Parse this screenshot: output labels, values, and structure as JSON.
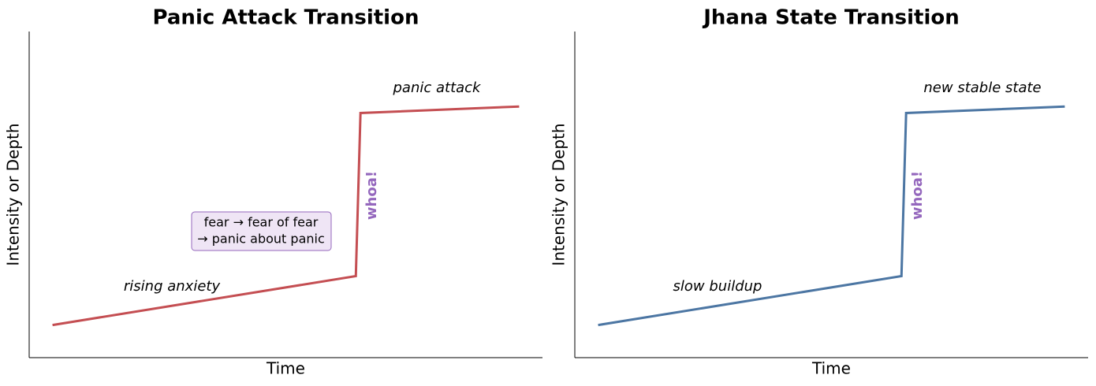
{
  "chart_data": [
    {
      "type": "line",
      "title": "Panic Attack Transition",
      "x_label": "Time",
      "y_label": "Intensity or Depth",
      "x": [
        0,
        6.5,
        6.6,
        10
      ],
      "xlim": [
        -0.5,
        10.5
      ],
      "ylim": [
        0,
        10
      ],
      "series": [
        {
          "color": "#c44e52",
          "values": [
            1.0,
            2.5,
            7.5,
            7.7
          ]
        }
      ],
      "annotations": [
        "rising anxiety",
        "panic attack",
        "whoa!"
      ],
      "box_text": [
        "fear → fear of fear",
        "→ panic about panic"
      ]
    },
    {
      "type": "line",
      "title": "Jhana State Transition",
      "x_label": "Time",
      "y_label": "Intensity or Depth",
      "x": [
        0,
        6.5,
        6.6,
        10
      ],
      "xlim": [
        -0.5,
        10.5
      ],
      "ylim": [
        0,
        10
      ],
      "series": [
        {
          "color": "#4c76a3",
          "values": [
            1.0,
            2.5,
            7.5,
            7.7
          ]
        }
      ],
      "annotations": [
        "slow buildup",
        "new stable state",
        "whoa!"
      ]
    }
  ]
}
